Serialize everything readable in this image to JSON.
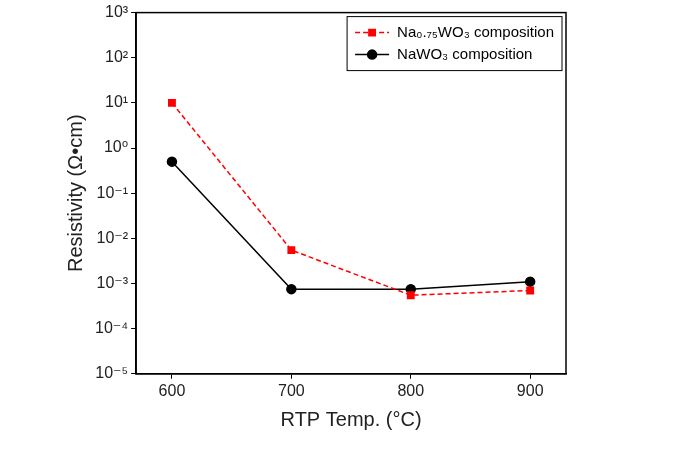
{
  "chart_data": {
    "type": "line",
    "xlabel": "RTP Temp. (°C)",
    "ylabel": "Resistivity (Ω•cm)",
    "x": [
      600,
      700,
      800,
      900
    ],
    "series": [
      {
        "name": "Na₀.₇₅WO₃ composition",
        "color": "#ff0000",
        "marker": "square",
        "line_style": "dashed",
        "values": [
          10,
          0.0055,
          0.00055,
          0.0007
        ]
      },
      {
        "name": "NaWO₃ composition",
        "color": "#000000",
        "marker": "circle",
        "line_style": "solid",
        "values": [
          0.5,
          0.00075,
          0.00075,
          0.0011
        ]
      }
    ],
    "xlim": [
      570,
      930
    ],
    "xticks": [
      600,
      700,
      800,
      900
    ],
    "ylim": [
      1e-05,
      1000
    ],
    "yticks": [
      {
        "value": 1e-05,
        "label": "10⁻⁵"
      },
      {
        "value": 0.0001,
        "label": "10⁻⁴"
      },
      {
        "value": 0.001,
        "label": "10⁻³"
      },
      {
        "value": 0.01,
        "label": "10⁻²"
      },
      {
        "value": 0.1,
        "label": "10⁻¹"
      },
      {
        "value": 1,
        "label": "10⁰"
      },
      {
        "value": 10,
        "label": "10¹"
      },
      {
        "value": 100,
        "label": "10²"
      },
      {
        "value": 1000,
        "label": "10³"
      }
    ],
    "log": "y",
    "grid": false,
    "legend": "upper right"
  }
}
